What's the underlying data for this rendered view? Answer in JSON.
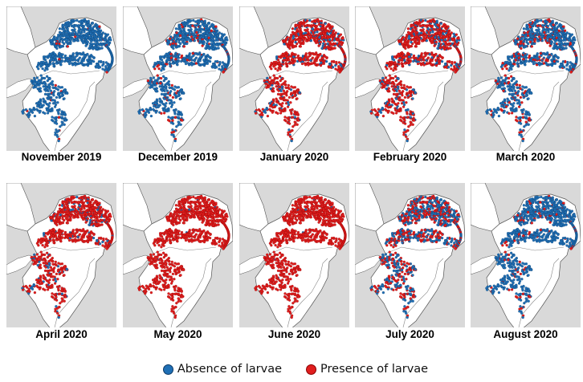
{
  "panels": [
    {
      "label": "November 2019",
      "presence": 0.02
    },
    {
      "label": "December 2019",
      "presence": 0.1
    },
    {
      "label": "January 2020",
      "presence": 0.8
    },
    {
      "label": "February 2020",
      "presence": 0.75
    },
    {
      "label": "March 2020",
      "presence": 0.2
    },
    {
      "label": "April 2020",
      "presence": 0.85
    },
    {
      "label": "May 2020",
      "presence": 0.99
    },
    {
      "label": "June 2020",
      "presence": 0.99
    },
    {
      "label": "July 2020",
      "presence": 0.45
    },
    {
      "label": "August 2020",
      "presence": 0.08
    }
  ],
  "legend": {
    "absence": {
      "label": "Absence of larvae",
      "color": "#1f6fb5"
    },
    "presence": {
      "label": "Presence of larvae",
      "color": "#e01e1e"
    }
  },
  "colors": {
    "land_outside": "#d9d9d9",
    "region": "#ffffff",
    "border": "#555555"
  }
}
